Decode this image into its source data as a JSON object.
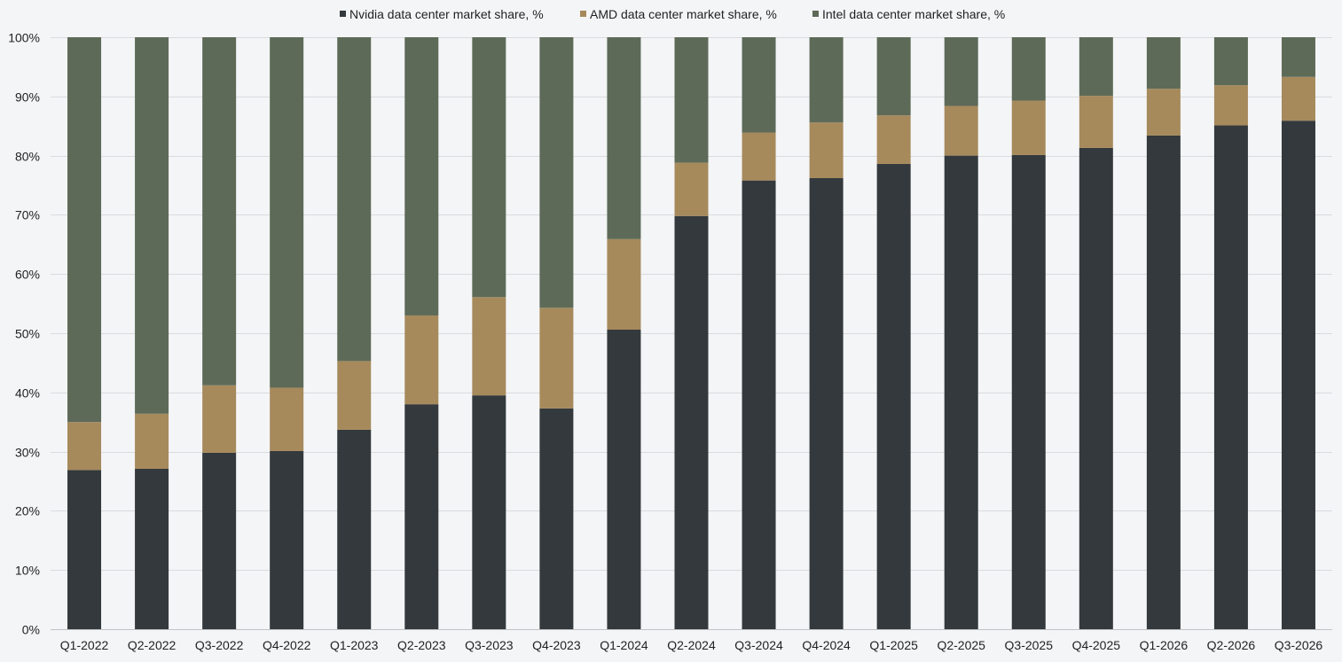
{
  "chart_data": {
    "type": "bar",
    "stacked": true,
    "title": "",
    "xlabel": "",
    "ylabel": "",
    "ylim": [
      0,
      100
    ],
    "ytick_values": [
      0,
      10,
      20,
      30,
      40,
      50,
      60,
      70,
      80,
      90,
      100
    ],
    "ytick_labels": [
      "0%",
      "10%",
      "20%",
      "30%",
      "40%",
      "50%",
      "60%",
      "70%",
      "80%",
      "90%",
      "100%"
    ],
    "grid": true,
    "legend_position": "top-center",
    "categories": [
      "Q1-2022",
      "Q2-2022",
      "Q3-2022",
      "Q4-2022",
      "Q1-2023",
      "Q2-2023",
      "Q3-2023",
      "Q4-2023",
      "Q1-2024",
      "Q2-2024",
      "Q3-2024",
      "Q4-2024",
      "Q1-2025",
      "Q2-2025",
      "Q3-2025",
      "Q4-2025",
      "Q1-2026",
      "Q2-2026",
      "Q3-2026"
    ],
    "series": [
      {
        "name": "Nvidia data center market share, %",
        "color": "#33393c",
        "values": [
          26.9,
          27.1,
          29.8,
          30.1,
          33.7,
          38.0,
          39.5,
          37.3,
          50.6,
          69.8,
          75.8,
          76.2,
          78.6,
          80.0,
          80.1,
          81.3,
          83.4,
          85.1,
          85.9
        ]
      },
      {
        "name": "AMD data center market share, %",
        "color": "#a68a5c",
        "values": [
          8.1,
          9.3,
          11.4,
          10.7,
          11.6,
          15.0,
          16.6,
          17.0,
          15.3,
          9.0,
          8.1,
          9.4,
          8.2,
          8.4,
          9.2,
          8.8,
          7.9,
          6.8,
          7.4
        ]
      },
      {
        "name": "Intel data center market share, %",
        "color": "#5d6a58",
        "values": [
          65.0,
          63.6,
          58.8,
          59.2,
          54.7,
          47.0,
          43.9,
          45.7,
          34.1,
          21.2,
          16.1,
          14.4,
          13.2,
          11.6,
          10.7,
          9.9,
          8.7,
          8.1,
          6.7
        ]
      }
    ]
  }
}
